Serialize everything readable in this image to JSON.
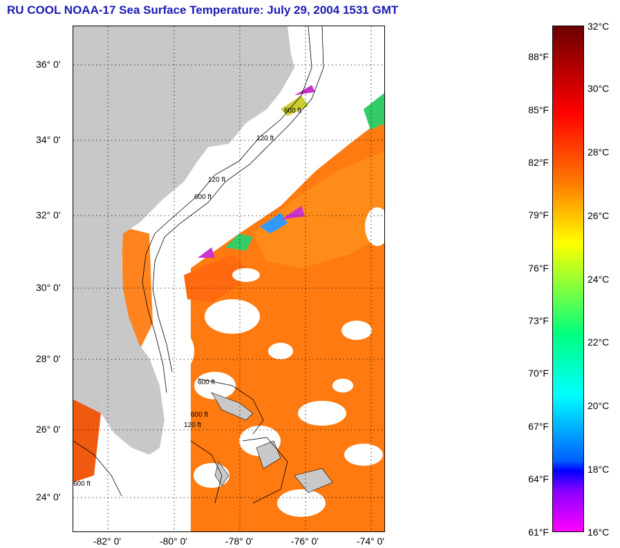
{
  "title": "RU COOL  NOAA-17  Sea Surface Temperature:  July 29, 2004 1531 GMT",
  "map": {
    "lat_labels": [
      "36° 0'",
      "34° 0'",
      "32° 0'",
      "30° 0'",
      "28° 0'",
      "26° 0'",
      "24° 0'"
    ],
    "lon_labels": [
      "-82° 0'",
      "-80° 0'",
      "-78° 0'",
      "-76° 0'",
      "-74° 0'"
    ],
    "land_color": "#c8c8c8",
    "cloud_color": "#ffffff",
    "warm_water_color": "#ff7a10",
    "contour_labels": [
      "120 ft",
      "600 ft",
      "600 ft",
      "120 ft",
      "600 ft",
      "600 ft",
      "120 ft",
      "600 ft"
    ]
  },
  "colorbar": {
    "fahrenheit_labels": [
      "88°F",
      "85°F",
      "82°F",
      "79°F",
      "76°F",
      "73°F",
      "70°F",
      "67°F",
      "64°F",
      "61°F"
    ],
    "celsius_labels": [
      "32°C",
      "30°C",
      "28°C",
      "26°C",
      "24°C",
      "22°C",
      "20°C",
      "18°C",
      "16°C"
    ]
  }
}
